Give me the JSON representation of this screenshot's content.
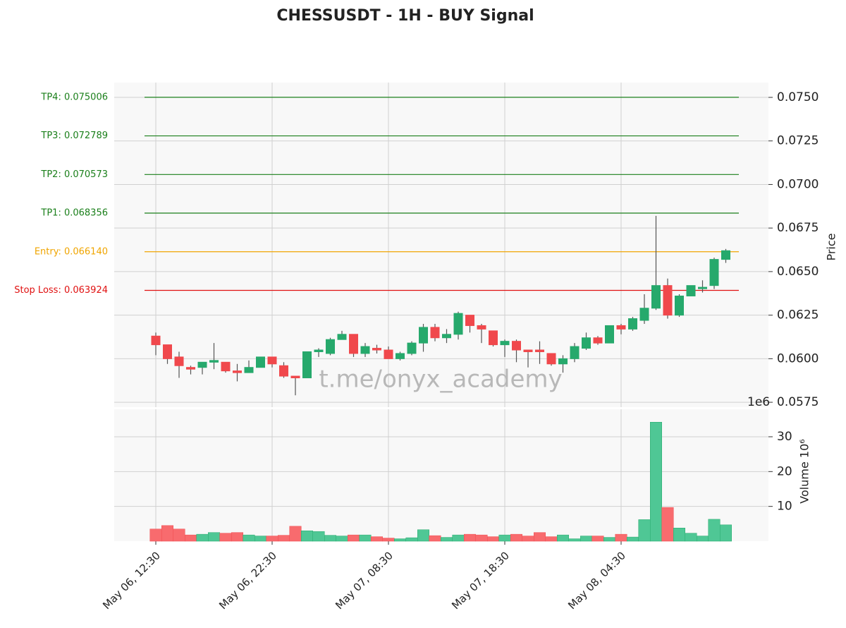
{
  "chart_data": {
    "type": "candlestick",
    "title": "CHESSUSDT - 1H - BUY Signal",
    "categories": [
      "May 06, 12:30",
      null,
      null,
      null,
      null,
      null,
      null,
      null,
      null,
      null,
      "May 06, 22:30",
      null,
      null,
      null,
      null,
      null,
      null,
      null,
      null,
      null,
      "May 07, 08:30",
      null,
      null,
      null,
      null,
      null,
      null,
      null,
      null,
      null,
      "May 07, 18:30",
      null,
      null,
      null,
      null,
      null,
      null,
      null,
      null,
      null,
      "May 08, 04:30",
      null,
      null,
      null,
      null,
      null,
      null,
      null,
      null,
      null
    ],
    "open": [
      0.0613,
      0.0608,
      0.0601,
      0.0595,
      0.0595,
      0.0598,
      0.0598,
      0.0593,
      0.0592,
      0.0595,
      0.0601,
      0.0596,
      0.059,
      0.0589,
      0.0604,
      0.0603,
      0.0611,
      0.0614,
      0.0603,
      0.0606,
      0.0605,
      0.06,
      0.0603,
      0.0609,
      0.0618,
      0.0612,
      0.0614,
      0.0625,
      0.0619,
      0.0616,
      0.0608,
      0.061,
      0.0605,
      0.0605,
      0.0603,
      0.0597,
      0.06,
      0.0606,
      0.0612,
      0.0609,
      0.0619,
      0.0617,
      0.0622,
      0.0629,
      0.0642,
      0.0625,
      0.0636,
      0.0641,
      0.0642,
      0.0657
    ],
    "high": [
      0.0615,
      0.0608,
      0.0604,
      0.0596,
      0.0598,
      0.0609,
      0.0598,
      0.0597,
      0.0599,
      0.0601,
      0.0601,
      0.0598,
      0.059,
      0.0604,
      0.0606,
      0.0612,
      0.0616,
      0.0614,
      0.0609,
      0.0608,
      0.0607,
      0.0604,
      0.061,
      0.062,
      0.062,
      0.0617,
      0.0627,
      0.0625,
      0.062,
      0.0616,
      0.0611,
      0.0611,
      0.0605,
      0.061,
      0.0603,
      0.0602,
      0.0609,
      0.0615,
      0.0613,
      0.0619,
      0.062,
      0.0624,
      0.0637,
      0.0682,
      0.0646,
      0.0637,
      0.0642,
      0.0645,
      0.0658,
      0.0663
    ],
    "low": [
      0.0602,
      0.0597,
      0.0589,
      0.0591,
      0.0591,
      0.0594,
      0.0592,
      0.0587,
      0.0592,
      0.0595,
      0.0595,
      0.0589,
      0.0579,
      0.0589,
      0.0601,
      0.0602,
      0.0611,
      0.0601,
      0.0601,
      0.0603,
      0.06,
      0.0599,
      0.0602,
      0.0604,
      0.061,
      0.0609,
      0.0611,
      0.0615,
      0.0609,
      0.0607,
      0.0601,
      0.0598,
      0.0595,
      0.0597,
      0.0596,
      0.0592,
      0.0598,
      0.0605,
      0.0608,
      0.0609,
      0.0614,
      0.0616,
      0.062,
      0.0628,
      0.0623,
      0.0624,
      0.0636,
      0.0638,
      0.064,
      0.0655
    ],
    "close": [
      0.0608,
      0.06,
      0.0596,
      0.0594,
      0.0598,
      0.0599,
      0.0593,
      0.0592,
      0.0595,
      0.0601,
      0.0597,
      0.059,
      0.0589,
      0.0604,
      0.0605,
      0.0611,
      0.0614,
      0.0603,
      0.0607,
      0.0605,
      0.06,
      0.0603,
      0.0609,
      0.0618,
      0.0612,
      0.0614,
      0.0626,
      0.0619,
      0.0617,
      0.0608,
      0.061,
      0.0605,
      0.0604,
      0.0604,
      0.0597,
      0.06,
      0.0607,
      0.0612,
      0.0609,
      0.0619,
      0.0617,
      0.0623,
      0.0629,
      0.0642,
      0.0625,
      0.0636,
      0.0642,
      0.0641,
      0.0657,
      0.0662
    ],
    "volume": [
      3.5,
      4.5,
      3.5,
      1.8,
      2,
      2.5,
      2.3,
      2.5,
      1.8,
      1.5,
      1.5,
      1.7,
      4.3,
      3,
      2.8,
      1.7,
      1.5,
      1.8,
      1.8,
      1.3,
      0.9,
      0.7,
      1,
      3.3,
      1.6,
      1.1,
      1.8,
      2,
      1.8,
      1.3,
      1.8,
      2,
      1.5,
      2.5,
      1.3,
      1.8,
      0.7,
      1.5,
      1.5,
      1.1,
      2,
      1.2,
      6.2,
      34.2,
      9.7,
      3.8,
      2.3,
      1.5,
      6.3,
      4.7
    ],
    "up_color": "#26a96c",
    "down_color": "#f0484c",
    "up_volume_color": "#4fc795",
    "down_volume_color": "#f86b6e",
    "ylim": [
      0.05722,
      0.07585
    ],
    "yticks": [
      0.0575,
      {
        "value": 0.06,
        "label": "0.0600"
      },
      0.0625,
      {
        "value": 0.065,
        "label": "0.0650"
      },
      0.0675,
      {
        "value": 0.07,
        "label": "0.0700"
      },
      0.0725,
      {
        "value": 0.075,
        "label": "0.0750"
      }
    ],
    "ylabel": "Price",
    "volume_ylim": [
      0,
      37.9
    ],
    "volume_yticks": [
      10,
      20,
      30
    ],
    "volume_label": "Volume  10⁶",
    "offset_text": "1e6",
    "grid": true,
    "levels": [
      {
        "label": "TP4: 0.075006",
        "value": 0.075006,
        "color": "#1a7f1a"
      },
      {
        "label": "TP3: 0.072789",
        "value": 0.072789,
        "color": "#1a7f1a"
      },
      {
        "label": "TP2: 0.070573",
        "value": 0.070573,
        "color": "#1a7f1a"
      },
      {
        "label": "TP1: 0.068356",
        "value": 0.068356,
        "color": "#1a7f1a"
      },
      {
        "label": "Entry: 0.066140",
        "value": 0.06614,
        "color": "#f0a500"
      },
      {
        "label": "Stop Loss: 0.063924",
        "value": 0.063924,
        "color": "#e01010"
      }
    ],
    "watermark": "t.me/onyx_academy"
  }
}
